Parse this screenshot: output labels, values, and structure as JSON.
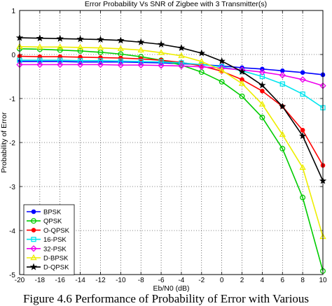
{
  "caption": "Figure 4.6 Performance of Probability of Error with Various",
  "chart_data": {
    "type": "line",
    "title": "Error Probability Vs SNR of Zigbee with 3 Transmitter(s)",
    "xlabel": "Eb/N0 (dB)",
    "ylabel": "Probability of Error",
    "xlim": [
      -20,
      10
    ],
    "ylim": [
      -5,
      1
    ],
    "xticks": [
      -20,
      -18,
      -16,
      -14,
      -12,
      -10,
      -8,
      -6,
      -4,
      -2,
      0,
      2,
      4,
      6,
      8,
      10
    ],
    "yticks": [
      -5,
      -4,
      -3,
      -2,
      -1,
      0,
      1
    ],
    "grid": true,
    "legend_position": "bottom-left",
    "x": [
      -20,
      -18,
      -16,
      -14,
      -12,
      -10,
      -8,
      -6,
      -4,
      -2,
      0,
      2,
      4,
      6,
      8,
      10
    ],
    "series": [
      {
        "name": "BPSK",
        "color": "#0000ff",
        "marker": "dot",
        "values": [
          -0.16,
          -0.16,
          -0.16,
          -0.17,
          -0.17,
          -0.17,
          -0.18,
          -0.19,
          -0.21,
          -0.23,
          -0.26,
          -0.3,
          -0.33,
          -0.37,
          -0.41,
          -0.46
        ]
      },
      {
        "name": "QPSK",
        "color": "#00cc00",
        "marker": "circle",
        "values": [
          0.13,
          0.12,
          0.1,
          0.08,
          0.05,
          0.01,
          -0.05,
          -0.13,
          -0.24,
          -0.4,
          -0.62,
          -0.95,
          -1.43,
          -2.14,
          -3.25,
          -4.92
        ]
      },
      {
        "name": "O-QPSK",
        "color": "#ff0000",
        "marker": "dot",
        "values": [
          -0.04,
          -0.05,
          -0.05,
          -0.06,
          -0.07,
          -0.08,
          -0.1,
          -0.13,
          -0.18,
          -0.26,
          -0.38,
          -0.57,
          -0.83,
          -1.18,
          -1.72,
          -2.52
        ]
      },
      {
        "name": "16-PSK",
        "color": "#00e5ee",
        "marker": "square",
        "values": [
          -0.13,
          -0.13,
          -0.13,
          -0.14,
          -0.14,
          -0.15,
          -0.16,
          -0.17,
          -0.19,
          -0.23,
          -0.28,
          -0.37,
          -0.5,
          -0.67,
          -0.9,
          -1.21
        ]
      },
      {
        "name": "32-PSK",
        "color": "#ee00ee",
        "marker": "diamond",
        "values": [
          -0.23,
          -0.23,
          -0.23,
          -0.23,
          -0.23,
          -0.24,
          -0.24,
          -0.25,
          -0.26,
          -0.28,
          -0.31,
          -0.35,
          -0.4,
          -0.47,
          -0.57,
          -0.71
        ]
      },
      {
        "name": "D-BPSK",
        "color": "#eeee00",
        "marker": "triangle",
        "values": [
          0.18,
          0.17,
          0.17,
          0.16,
          0.15,
          0.13,
          0.1,
          0.04,
          -0.03,
          -0.16,
          -0.36,
          -0.66,
          -1.13,
          -1.82,
          -2.57,
          -4.14
        ]
      },
      {
        "name": "D-QPSK",
        "color": "#000000",
        "marker": "star",
        "values": [
          0.38,
          0.37,
          0.36,
          0.35,
          0.34,
          0.32,
          0.28,
          0.23,
          0.15,
          0.03,
          -0.15,
          -0.39,
          -0.7,
          -1.18,
          -1.85,
          -2.87
        ]
      }
    ]
  }
}
